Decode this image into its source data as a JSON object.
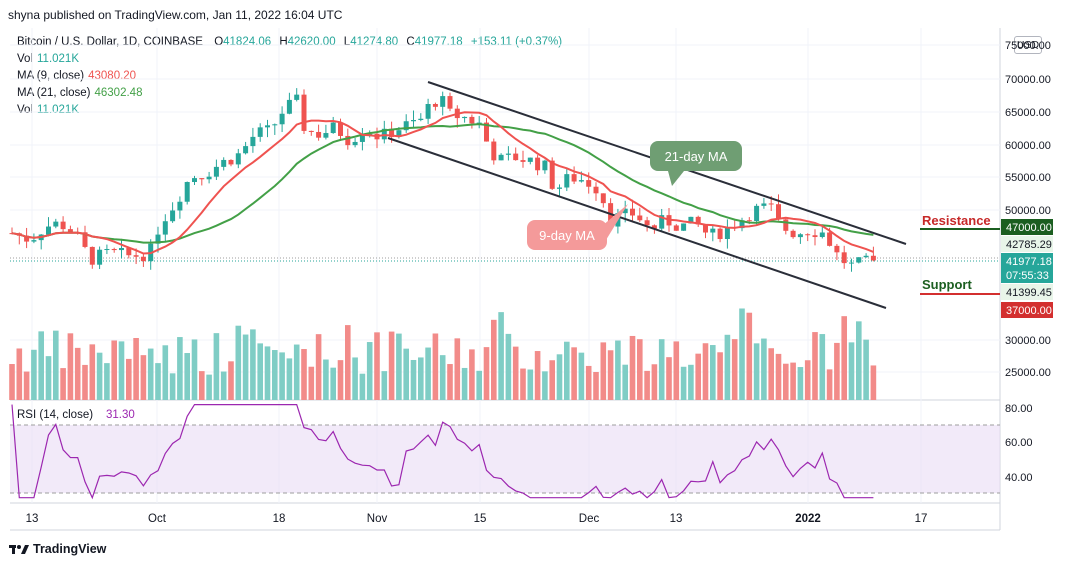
{
  "header": {
    "published": "shyna published on TradingView.com, Jan 11, 2022 16:04 UTC"
  },
  "legend": {
    "symbol": "Bitcoin / U.S. Dollar, 1D, COINBASE",
    "open_k": "O",
    "open": "41824.06",
    "high_k": "H",
    "high": "42620.00",
    "low_k": "L",
    "low": "41274.80",
    "close_k": "C",
    "close": "41977.18",
    "change": "+153.11 (+0.37%)",
    "vol_label": "Vol",
    "vol_value": "11.021K",
    "ma9_label": "MA (9, close)",
    "ma9_value": "43080.20",
    "ma21_label": "MA (21, close)",
    "ma21_value": "46302.48",
    "vol2_label": "Vol",
    "vol2_value": "11.021K"
  },
  "currency": "USD",
  "price_axis": {
    "ticks": [
      "75000.00",
      "70000.00",
      "65000.00",
      "60000.00",
      "55000.00",
      "50000.00",
      "30000.00",
      "25000.00"
    ],
    "resistance_value": "47000.00",
    "level_42785": "42785.29",
    "last_price": "41977.18",
    "countdown": "07:55:33",
    "level_41399": "41399.45",
    "support_value": "37000.00"
  },
  "annotations": {
    "ma21": "21-day MA",
    "ma9": "9-day MA",
    "resistance": "Resistance",
    "support": "Support"
  },
  "rsi": {
    "label": "RSI (14, close)",
    "value": "31.30",
    "ticks": [
      "80.00",
      "60.00",
      "40.00"
    ]
  },
  "time_axis": [
    "13",
    "Oct",
    "18",
    "Nov",
    "15",
    "Dec",
    "13",
    "2022",
    "17"
  ],
  "footer": {
    "brand": "TradingView"
  },
  "colors": {
    "up": "#26a69a",
    "down": "#ef5350",
    "ma9": "#ef5350",
    "ma21": "#43a047",
    "rsi": "#9c27b0",
    "resistance": "#1b5e20",
    "support": "#d32f2f"
  }
}
